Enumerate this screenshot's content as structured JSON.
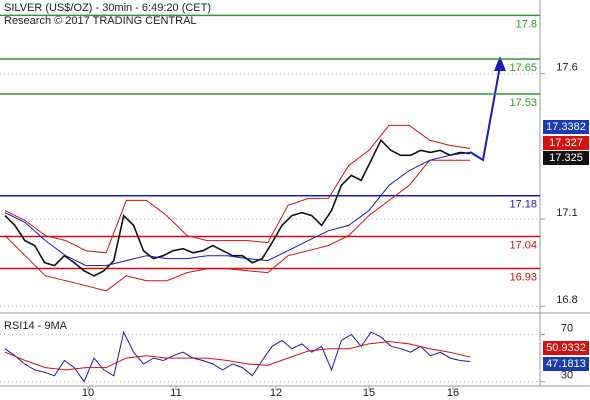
{
  "header": {
    "title": "SILVER (US$/OZ) - 30min - 6:49:20 (CET)",
    "subtitle": "Research © 2017 TRADING CENTRAL"
  },
  "time_axis": {
    "labels": [
      "10",
      "11",
      "12",
      "15",
      "16"
    ]
  },
  "chart_data": [
    {
      "type": "line",
      "ylim": [
        16.777,
        17.853
      ],
      "yticks": [
        16.8,
        17.1,
        17.6
      ],
      "grid": true,
      "levels": [
        {
          "value": 17.8,
          "color": "#2e9a2e"
        },
        {
          "value": 17.65,
          "color": "#2e9a2e"
        },
        {
          "value": 17.53,
          "color": "#2e9a2e"
        },
        {
          "value": 17.18,
          "color": "#1a1ab4"
        },
        {
          "value": 17.04,
          "color": "#d41010"
        },
        {
          "value": 16.93,
          "color": "#d41010"
        }
      ],
      "series": [
        {
          "color": "#111111",
          "values": [
            17.112,
            17.078,
            17.026,
            17.009,
            16.95,
            16.94,
            16.974,
            16.95,
            16.922,
            16.905,
            16.922,
            16.957,
            17.112,
            17.078,
            16.991,
            16.964,
            16.974,
            16.991,
            16.998,
            16.984,
            16.991,
            17.009,
            16.991,
            16.974,
            16.974,
            16.95,
            16.964,
            17.019,
            17.078,
            17.112,
            17.122,
            17.112,
            17.078,
            17.129,
            17.216,
            17.25,
            17.233,
            17.302,
            17.371,
            17.336,
            17.319,
            17.319,
            17.336,
            17.329,
            17.336,
            17.319,
            17.329,
            17.325
          ]
        },
        {
          "color": "#d41010",
          "values": [
            17.129,
            17.095,
            17.043,
            17.026,
            16.991,
            16.984,
            17.164,
            17.164,
            17.112,
            17.043,
            17.026,
            17.026,
            17.026,
            17.019,
            17.147,
            17.171,
            17.171,
            17.284,
            17.336,
            17.422,
            17.422,
            17.371,
            17.353,
            17.343
          ]
        },
        {
          "color": "#d41010",
          "values": [
            17.043,
            16.974,
            16.905,
            16.888,
            16.871,
            16.853,
            16.905,
            16.888,
            16.888,
            16.916,
            16.929,
            16.929,
            16.922,
            16.916,
            16.974,
            16.991,
            17.009,
            17.043,
            17.112,
            17.164,
            17.216,
            17.302,
            17.302,
            17.302
          ]
        },
        {
          "color": "#1a1ab4",
          "values": [
            17.122,
            17.088,
            17.026,
            16.974,
            16.94,
            16.94,
            16.957,
            16.974,
            16.964,
            16.964,
            16.974,
            16.974,
            16.964,
            16.957,
            16.991,
            17.026,
            17.06,
            17.078,
            17.129,
            17.216,
            17.267,
            17.302,
            17.319,
            17.329
          ]
        }
      ],
      "tags": [
        {
          "value": 17.3382,
          "color": "#1a3ab4"
        },
        {
          "value": 17.327,
          "color": "#d41010"
        },
        {
          "value": 17.325,
          "color": "#111111"
        }
      ]
    },
    {
      "type": "line",
      "title": "RSI14 - 9MA",
      "ylim": [
        26.4,
        88.2
      ],
      "yticks": [
        30,
        70
      ],
      "grid": true,
      "series": [
        {
          "color": "#1a1ab4",
          "values": [
            58,
            52,
            45,
            40,
            38,
            35,
            48,
            42,
            30,
            50,
            40,
            35,
            72,
            55,
            45,
            50,
            48,
            52,
            55,
            50,
            48,
            45,
            40,
            45,
            42,
            35,
            48,
            60,
            65,
            58,
            62,
            55,
            60,
            40,
            65,
            70,
            60,
            72,
            68,
            60,
            58,
            55,
            60,
            52,
            55,
            50,
            48,
            47.1813
          ]
        },
        {
          "color": "#d41010",
          "values": [
            55,
            48,
            42,
            40,
            42,
            42,
            50,
            52,
            50,
            50,
            50,
            48,
            45,
            44,
            50,
            56,
            58,
            58,
            62,
            64,
            62,
            58,
            55,
            50.9332
          ]
        }
      ],
      "tags": [
        {
          "value": 50.9332,
          "color": "#d41010"
        },
        {
          "value": 47.1813,
          "color": "#1a3ab4"
        }
      ]
    }
  ]
}
